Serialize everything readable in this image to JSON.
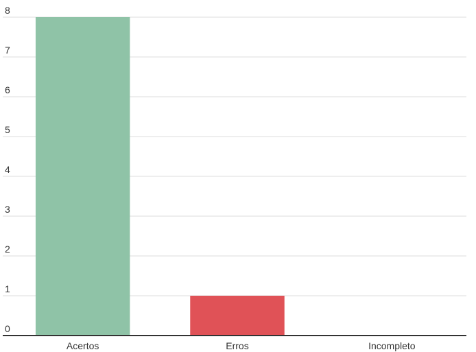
{
  "chart_data": {
    "type": "bar",
    "title": "",
    "xlabel": "",
    "ylabel": "",
    "categories": [
      "Acertos",
      "Erros",
      "Incompleto"
    ],
    "values": [
      8,
      1,
      0
    ],
    "colors": [
      "#8fc3a7",
      "#e05257",
      "#cccccc"
    ],
    "ylim": [
      0,
      8
    ],
    "yticks": [
      0,
      1,
      2,
      3,
      4,
      5,
      6,
      7,
      8
    ],
    "grid": true,
    "legend": "none",
    "gridline_color": "#dddddd",
    "baseline_color": "#333333"
  }
}
